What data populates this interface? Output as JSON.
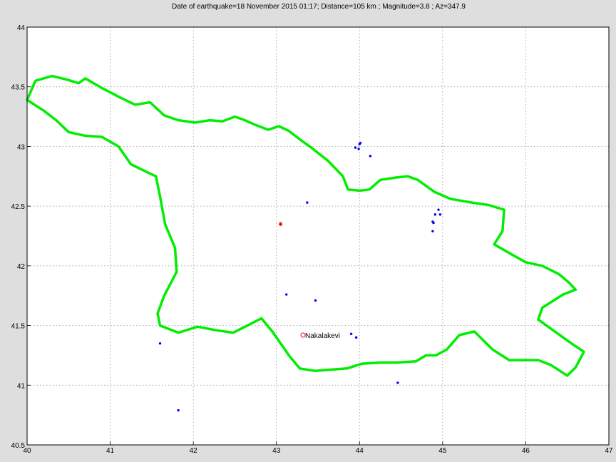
{
  "title": "Date of earthquake=18 November 2015 01:17; Distance=105 km ; Magnitude=3.8 ; Az=347.9",
  "chart_data": {
    "type": "scatter",
    "title": "Date of earthquake=18 November 2015 01:17; Distance=105 km ; Magnitude=3.8 ; Az=347.9",
    "xlim": [
      40,
      47
    ],
    "ylim": [
      40.5,
      44
    ],
    "x_ticks": [
      "40",
      "41",
      "42",
      "43",
      "44",
      "45",
      "46",
      "47"
    ],
    "y_ticks": [
      "40.5",
      "41",
      "41.5",
      "42",
      "42.5",
      "43",
      "43.5",
      "44"
    ],
    "grid": true,
    "station": {
      "label": "Nakalakevi",
      "lon": 43.32,
      "lat": 41.42,
      "color": "#ff3333"
    },
    "epicenter": {
      "lon": 43.05,
      "lat": 42.35,
      "color": "#ff0000"
    },
    "events_color": "#0000ff",
    "events": [
      [
        43.95,
        42.99
      ],
      [
        43.99,
        42.98
      ],
      [
        44.0,
        43.02
      ],
      [
        44.01,
        43.03
      ],
      [
        44.13,
        42.92
      ],
      [
        43.37,
        42.53
      ],
      [
        44.95,
        42.47
      ],
      [
        44.91,
        42.43
      ],
      [
        44.97,
        42.43
      ],
      [
        44.88,
        42.37
      ],
      [
        44.89,
        42.36
      ],
      [
        44.88,
        42.29
      ],
      [
        43.12,
        41.76
      ],
      [
        43.47,
        41.71
      ],
      [
        43.9,
        41.43
      ],
      [
        43.96,
        41.4
      ],
      [
        41.6,
        41.35
      ],
      [
        44.46,
        41.02
      ],
      [
        41.82,
        40.79
      ]
    ],
    "boundary_color": "#00ee00",
    "boundary": [
      [
        40.0,
        43.39
      ],
      [
        40.1,
        43.55
      ],
      [
        40.3,
        43.59
      ],
      [
        40.48,
        43.56
      ],
      [
        40.62,
        43.53
      ],
      [
        40.7,
        43.57
      ],
      [
        40.9,
        43.49
      ],
      [
        41.12,
        43.41
      ],
      [
        41.3,
        43.35
      ],
      [
        41.48,
        43.37
      ],
      [
        41.65,
        43.26
      ],
      [
        41.82,
        43.22
      ],
      [
        42.02,
        43.2
      ],
      [
        42.2,
        43.22
      ],
      [
        42.35,
        43.21
      ],
      [
        42.5,
        43.25
      ],
      [
        42.62,
        43.22
      ],
      [
        42.75,
        43.18
      ],
      [
        42.9,
        43.14
      ],
      [
        43.03,
        43.17
      ],
      [
        43.15,
        43.13
      ],
      [
        43.28,
        43.06
      ],
      [
        43.42,
        42.99
      ],
      [
        43.62,
        42.88
      ],
      [
        43.8,
        42.75
      ],
      [
        43.86,
        42.64
      ],
      [
        44.0,
        42.63
      ],
      [
        44.12,
        42.64
      ],
      [
        44.25,
        42.72
      ],
      [
        44.44,
        42.74
      ],
      [
        44.58,
        42.75
      ],
      [
        44.7,
        42.72
      ],
      [
        44.9,
        42.62
      ],
      [
        45.1,
        42.56
      ],
      [
        45.35,
        42.53
      ],
      [
        45.55,
        42.51
      ],
      [
        45.74,
        42.47
      ],
      [
        45.72,
        42.29
      ],
      [
        45.62,
        42.18
      ],
      [
        45.82,
        42.1
      ],
      [
        46.0,
        42.03
      ],
      [
        46.2,
        42.0
      ],
      [
        46.4,
        41.93
      ],
      [
        46.52,
        41.86
      ],
      [
        46.6,
        41.8
      ],
      [
        46.45,
        41.76
      ],
      [
        46.2,
        41.65
      ],
      [
        46.15,
        41.55
      ],
      [
        46.35,
        41.45
      ],
      [
        46.55,
        41.35
      ],
      [
        46.7,
        41.28
      ],
      [
        46.6,
        41.15
      ],
      [
        46.5,
        41.08
      ],
      [
        46.3,
        41.17
      ],
      [
        46.15,
        41.21
      ],
      [
        45.8,
        41.21
      ],
      [
        45.6,
        41.3
      ],
      [
        45.38,
        41.45
      ],
      [
        45.2,
        41.42
      ],
      [
        45.05,
        41.3
      ],
      [
        44.92,
        41.25
      ],
      [
        44.8,
        41.25
      ],
      [
        44.68,
        41.2
      ],
      [
        44.45,
        41.19
      ],
      [
        44.25,
        41.19
      ],
      [
        44.03,
        41.18
      ],
      [
        43.85,
        41.14
      ],
      [
        43.65,
        41.13
      ],
      [
        43.46,
        41.12
      ],
      [
        43.28,
        41.14
      ],
      [
        43.15,
        41.25
      ],
      [
        42.95,
        41.45
      ],
      [
        42.82,
        41.56
      ],
      [
        42.68,
        41.51
      ],
      [
        42.48,
        41.44
      ],
      [
        42.28,
        41.46
      ],
      [
        42.05,
        41.49
      ],
      [
        41.82,
        41.44
      ],
      [
        41.6,
        41.5
      ],
      [
        41.57,
        41.6
      ],
      [
        41.65,
        41.75
      ],
      [
        41.8,
        41.95
      ],
      [
        41.78,
        42.15
      ],
      [
        41.66,
        42.35
      ],
      [
        41.6,
        42.58
      ],
      [
        41.55,
        42.75
      ],
      [
        41.4,
        42.8
      ],
      [
        41.25,
        42.85
      ],
      [
        41.1,
        43.0
      ],
      [
        40.9,
        43.08
      ],
      [
        40.7,
        43.09
      ],
      [
        40.5,
        43.12
      ],
      [
        40.35,
        43.22
      ],
      [
        40.2,
        43.3
      ],
      [
        40.0,
        43.39
      ]
    ]
  }
}
